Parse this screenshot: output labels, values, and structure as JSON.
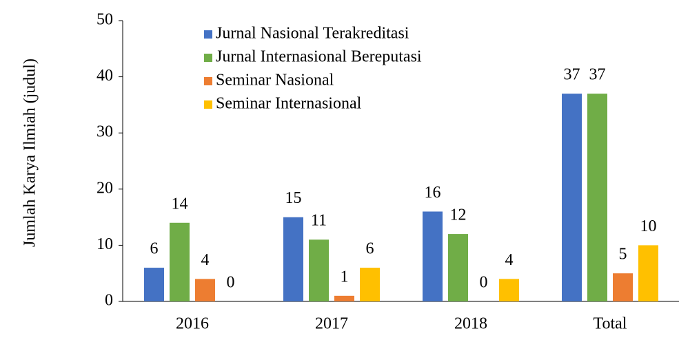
{
  "chart_data": {
    "type": "bar",
    "ylabel": "Jumlah  Karya Ilmiah (judul)",
    "categories": [
      "2016",
      "2017",
      "2018",
      "Total"
    ],
    "series": [
      {
        "name": "Jurnal Nasional Terakreditasi",
        "color": "#4472c4",
        "values": [
          6,
          15,
          16,
          37
        ]
      },
      {
        "name": "Jurnal Internasional Bereputasi",
        "color": "#70ad47",
        "values": [
          14,
          11,
          12,
          37
        ]
      },
      {
        "name": "Seminar Nasional",
        "color": "#ed7d31",
        "values": [
          4,
          1,
          0,
          5
        ]
      },
      {
        "name": "Seminar Internasional",
        "color": "#ffc000",
        "values": [
          0,
          6,
          4,
          10
        ]
      }
    ],
    "ylim": [
      0,
      50
    ],
    "yticks": [
      0,
      10,
      20,
      30,
      40,
      50
    ],
    "legend": "upper left",
    "grid": false
  }
}
